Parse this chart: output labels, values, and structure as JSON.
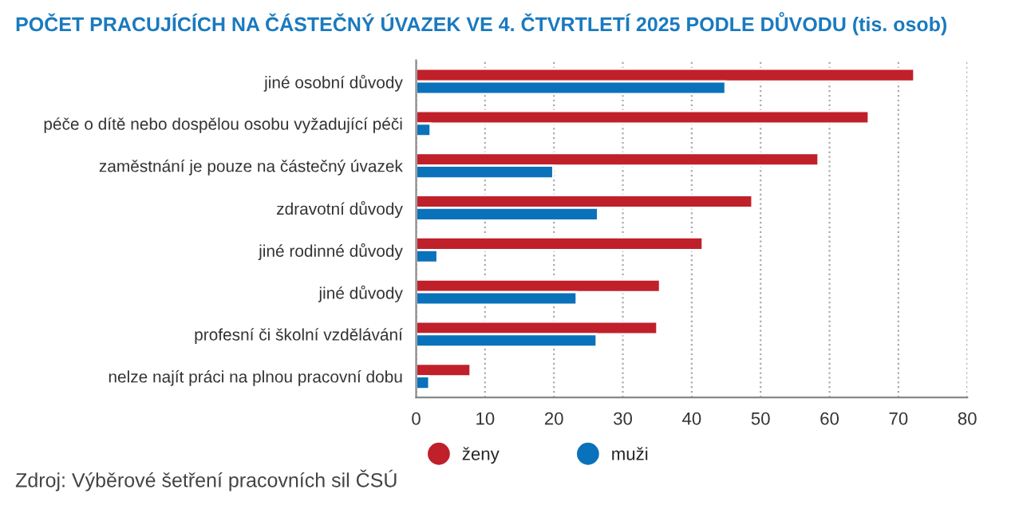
{
  "chart_data": {
    "type": "bar",
    "orientation": "horizontal",
    "title": "POČET PRACUJÍCÍCH NA ČÁSTEČNÝ ÚVAZEK VE 4. ČTVRTLETÍ 2025 PODLE DŮVODU (tis. osob)",
    "categories": [
      "jiné osobní důvody",
      "péče o dítě nebo dospělou osobu vyžadující péči",
      "zaměstnání je pouze na částečný úvazek",
      "zdravotní důvody",
      "jiné rodinné důvody",
      "jiné důvody",
      "profesní či školní vzdělávání",
      "nelze najít práci na plnou pracovní dobu"
    ],
    "series": [
      {
        "name": "ženy",
        "color": "#c0202a",
        "values": [
          72.3,
          65.7,
          58.4,
          48.8,
          41.6,
          35.4,
          35.0,
          7.9
        ]
      },
      {
        "name": "muži",
        "color": "#0a72ba",
        "values": [
          44.9,
          2.1,
          19.9,
          26.4,
          3.1,
          23.3,
          26.2,
          1.9
        ]
      }
    ],
    "xlim": [
      0,
      80
    ],
    "xticks": [
      0,
      10,
      20,
      30,
      40,
      50,
      60,
      70,
      80
    ],
    "grid": "x",
    "legend": "bottom left",
    "annotations": [
      "Zdroj: Výběrové šetření pracovních sil ČSÚ"
    ]
  }
}
